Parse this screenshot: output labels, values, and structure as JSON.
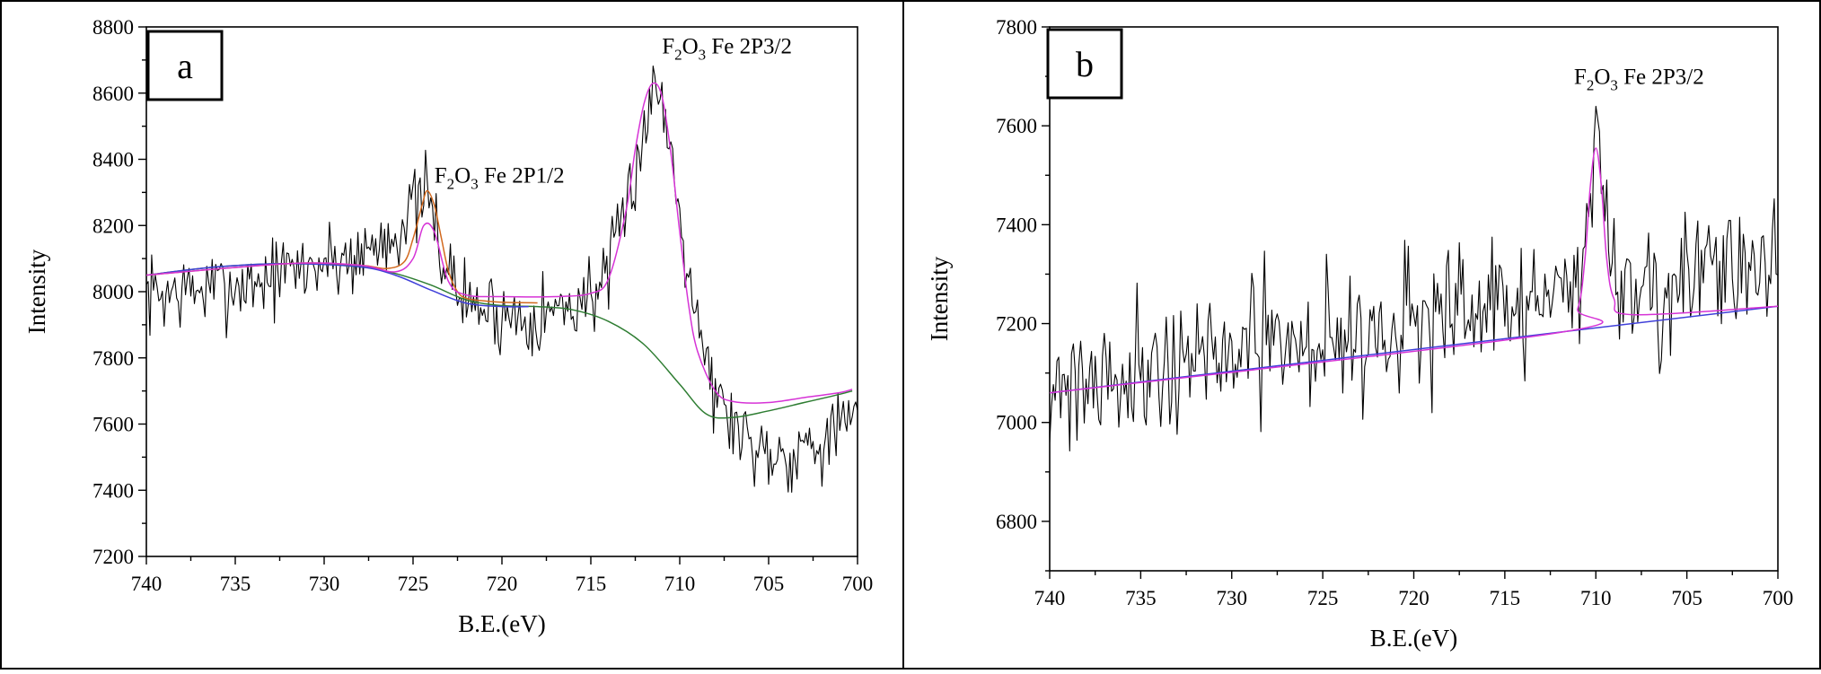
{
  "chart_data": [
    {
      "type": "line",
      "panel_label": "a",
      "title": "",
      "xlabel": "B.E.(eV)",
      "ylabel": "Intensity",
      "xlim": [
        740,
        700
      ],
      "ylim": [
        7200,
        8800
      ],
      "xticks": [
        740,
        735,
        730,
        725,
        720,
        715,
        710,
        705,
        700
      ],
      "yticks": [
        7200,
        7400,
        7600,
        7800,
        8000,
        8200,
        8400,
        8600,
        8800
      ],
      "annotations": [
        {
          "main": "F",
          "sub1": "2",
          "mid": "O",
          "sub2": "3",
          "rest": " Fe 2P1/2",
          "x": 723.8,
          "y": 8330
        },
        {
          "main": "F",
          "sub1": "2",
          "mid": "O",
          "sub2": "3",
          "rest": " Fe 2P3/2",
          "x": 711.0,
          "y": 8720
        }
      ],
      "series": [
        {
          "name": "raw spectrum",
          "color": "#000000",
          "style": "noise",
          "x": [
            740,
            738,
            736,
            734,
            732,
            730,
            728,
            726,
            725,
            724.2,
            723,
            722,
            720,
            718,
            716,
            714,
            713,
            712,
            711.5,
            711,
            710,
            709,
            708,
            706,
            704,
            702,
            700.5
          ],
          "y": [
            7990,
            8000,
            8010,
            8030,
            8060,
            8090,
            8110,
            8180,
            8250,
            8290,
            8050,
            7970,
            7930,
            7930,
            7960,
            8040,
            8250,
            8500,
            8600,
            8600,
            8250,
            7930,
            7680,
            7540,
            7510,
            7560,
            7600
          ],
          "amplitude": 145,
          "seed": 7
        },
        {
          "name": "background (Shirley)",
          "color": "#2e7d32",
          "x": [
            740,
            736,
            732,
            728,
            726,
            724,
            722,
            720,
            718,
            716,
            714,
            712,
            710,
            708.5,
            707,
            705,
            703,
            701,
            700.3
          ],
          "y": [
            8050,
            8075,
            8085,
            8075,
            8055,
            8020,
            7975,
            7958,
            7955,
            7945,
            7910,
            7840,
            7720,
            7630,
            7620,
            7640,
            7665,
            7690,
            7700
          ]
        },
        {
          "name": "background (linear)",
          "color": "#3f3fd9",
          "x": [
            740,
            736,
            732,
            728,
            726,
            724,
            722,
            720,
            718.5
          ],
          "y": [
            8050,
            8075,
            8085,
            8075,
            8050,
            8005,
            7965,
            7955,
            7955
          ]
        },
        {
          "name": "Fe 2P1/2 fit",
          "color": "#d2691e",
          "x": [
            740,
            732,
            728,
            726.5,
            725.5,
            725,
            724.5,
            724.2,
            723.8,
            723.4,
            723,
            722.5,
            722,
            721,
            720,
            718
          ],
          "y": [
            8050,
            8085,
            8080,
            8070,
            8090,
            8160,
            8260,
            8305,
            8260,
            8160,
            8060,
            8000,
            7980,
            7972,
            7968,
            7966
          ]
        },
        {
          "name": "envelope fit",
          "color": "#d633d6",
          "x": [
            740,
            732,
            728,
            726,
            725,
            724.4,
            723.8,
            723,
            722,
            720,
            717,
            715,
            714,
            713,
            712.5,
            712,
            711.5,
            711,
            710.5,
            710,
            709.5,
            709,
            708,
            707,
            705,
            703,
            701,
            700.3
          ],
          "y": [
            8050,
            8085,
            8080,
            8060,
            8100,
            8200,
            8180,
            8030,
            7990,
            7985,
            7985,
            7995,
            8040,
            8250,
            8430,
            8570,
            8630,
            8590,
            8420,
            8180,
            7960,
            7820,
            7700,
            7668,
            7665,
            7680,
            7695,
            7705
          ]
        }
      ]
    },
    {
      "type": "line",
      "panel_label": "b",
      "title": "",
      "xlabel": "B.E.(eV)",
      "ylabel": "Intensity",
      "xlim": [
        740,
        700
      ],
      "ylim": [
        6700,
        7800
      ],
      "xticks": [
        740,
        735,
        730,
        725,
        720,
        715,
        710,
        705,
        700
      ],
      "yticks": [
        6800,
        7000,
        7200,
        7400,
        7600,
        7800
      ],
      "annotations": [
        {
          "main": "F",
          "sub1": "2",
          "mid": "O",
          "sub2": "3",
          "rest": " Fe 2P3/2",
          "x": 711.2,
          "y": 7685
        }
      ],
      "series": [
        {
          "name": "raw spectrum",
          "color": "#000000",
          "style": "noise",
          "x": [
            740,
            735,
            730,
            725,
            720,
            715,
            711,
            710.3,
            710,
            709.7,
            709,
            705,
            700
          ],
          "y": [
            7080,
            7110,
            7140,
            7170,
            7200,
            7230,
            7260,
            7500,
            7580,
            7500,
            7280,
            7280,
            7330
          ],
          "amplitude": 165,
          "seed": 21
        },
        {
          "name": "background (linear)",
          "color": "#3f3fd9",
          "x": [
            740,
            700
          ],
          "y": [
            7060,
            7235
          ]
        },
        {
          "name": "peak fit",
          "color": "#d633d6",
          "x": [
            740,
            712,
            711,
            710.6,
            710.3,
            710,
            709.7,
            709.4,
            709,
            708,
            700
          ],
          "y": [
            7060,
            7182,
            7230,
            7330,
            7480,
            7555,
            7480,
            7330,
            7250,
            7218,
            7235
          ]
        }
      ]
    }
  ]
}
